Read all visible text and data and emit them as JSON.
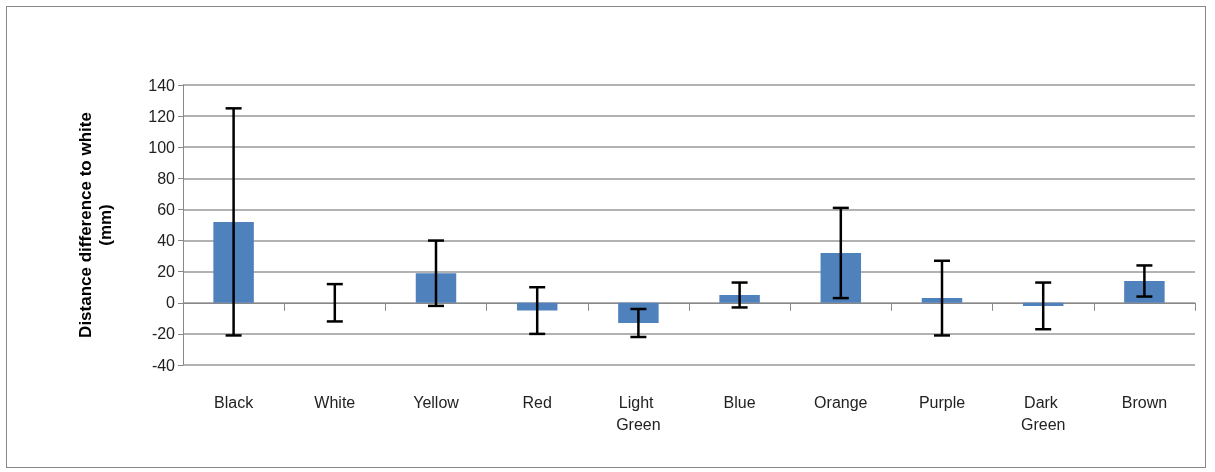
{
  "chart_data": {
    "type": "bar",
    "ylabel": "Distance difference to white (mm)",
    "categories": [
      "Black",
      "White",
      "Yellow",
      "Red",
      "Light Green",
      "Blue",
      "Orange",
      "Purple",
      "Dark Green",
      "Brown"
    ],
    "values": [
      52,
      0,
      19,
      -5,
      -13,
      5,
      32,
      3,
      -2,
      14
    ],
    "errors": [
      73,
      12,
      21,
      15,
      9,
      8,
      29,
      24,
      15,
      10
    ],
    "color": "#4f81bd",
    "ylim": [
      -40,
      140
    ],
    "yticks": [
      -40,
      -20,
      0,
      20,
      40,
      60,
      80,
      100,
      120,
      140
    ],
    "grid": "y"
  }
}
